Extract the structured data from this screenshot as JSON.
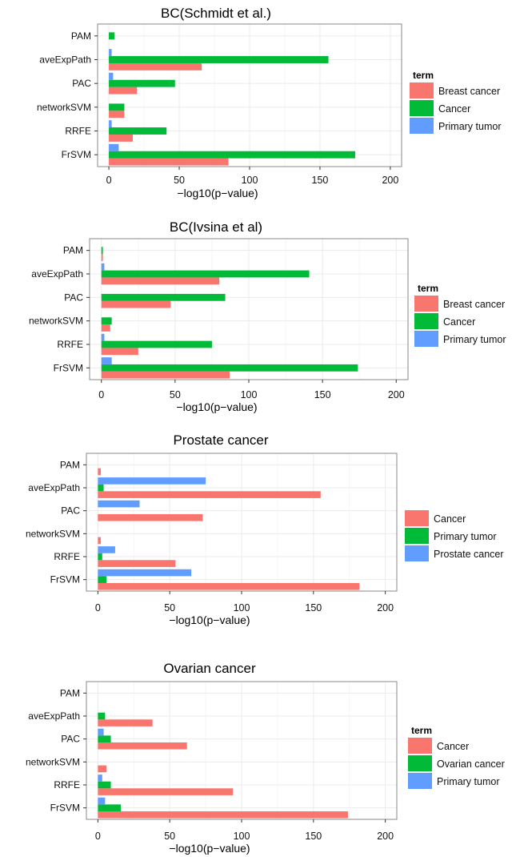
{
  "colors": {
    "red": "#F8766D",
    "green": "#00BA38",
    "blue": "#619CFF",
    "panel": "#ffffff",
    "grid": "#ebebeb",
    "border": "#8a8a8a"
  },
  "chart_data": [
    {
      "type": "bar",
      "orientation": "horizontal",
      "title": "BC(Schmidt et al.)",
      "xlabel": "−log10(p−value)",
      "ylabel": "",
      "categories": [
        "PAM",
        "aveExpPath",
        "PAC",
        "networkSVM",
        "RRFE",
        "FrSVM"
      ],
      "xlim": [
        -8,
        208
      ],
      "xticks": [
        0,
        50,
        100,
        150,
        200
      ],
      "grid": true,
      "legend_title": "term",
      "legend_position": "right",
      "series": [
        {
          "name": "Breast cancer",
          "color": "#F8766D",
          "values": [
            0,
            66,
            20,
            11,
            17,
            85
          ]
        },
        {
          "name": "Cancer",
          "color": "#00BA38",
          "values": [
            4,
            156,
            47,
            11,
            41,
            175
          ]
        },
        {
          "name": "Primary tumor",
          "color": "#619CFF",
          "values": [
            0,
            2,
            3,
            0,
            2,
            7
          ]
        }
      ]
    },
    {
      "type": "bar",
      "orientation": "horizontal",
      "title": "BC(Ivsina et al)",
      "xlabel": "−log10(p−value)",
      "ylabel": "",
      "categories": [
        "PAM",
        "aveExpPath",
        "PAC",
        "networkSVM",
        "RRFE",
        "FrSVM"
      ],
      "xlim": [
        -8,
        208
      ],
      "xticks": [
        0,
        50,
        100,
        150,
        200
      ],
      "grid": true,
      "legend_title": "term",
      "legend_position": "right",
      "series": [
        {
          "name": "Breast cancer",
          "color": "#F8766D",
          "values": [
            1,
            80,
            47,
            6,
            25,
            87
          ]
        },
        {
          "name": "Cancer",
          "color": "#00BA38",
          "values": [
            1,
            141,
            84,
            7,
            75,
            174
          ]
        },
        {
          "name": "Primary tumor",
          "color": "#619CFF",
          "values": [
            0,
            2,
            0,
            0,
            2,
            7
          ]
        }
      ]
    },
    {
      "type": "bar",
      "orientation": "horizontal",
      "title": "Prostate cancer",
      "xlabel": "−log10(p−value)",
      "ylabel": "",
      "categories": [
        "PAM",
        "aveExpPath",
        "PAC",
        "networkSVM",
        "RRFE",
        "FrSVM"
      ],
      "xlim": [
        -8,
        208
      ],
      "xticks": [
        0,
        50,
        100,
        150,
        200
      ],
      "grid": true,
      "legend_title": "",
      "legend_position": "right",
      "series": [
        {
          "name": "Cancer",
          "color": "#F8766D",
          "values": [
            2,
            155,
            73,
            2,
            54,
            182
          ]
        },
        {
          "name": "Primary tumor",
          "color": "#00BA38",
          "values": [
            0,
            4,
            0,
            0,
            3,
            6
          ]
        },
        {
          "name": "Prostate cancer",
          "color": "#619CFF",
          "values": [
            0,
            75,
            29,
            0,
            12,
            65
          ]
        }
      ]
    },
    {
      "type": "bar",
      "orientation": "horizontal",
      "title": "Ovarian cancer",
      "xlabel": "−log10(p−value)",
      "ylabel": "",
      "categories": [
        "PAM",
        "aveExpPath",
        "PAC",
        "networkSVM",
        "RRFE",
        "FrSVM"
      ],
      "xlim": [
        -8,
        208
      ],
      "xticks": [
        0,
        50,
        100,
        150,
        200
      ],
      "grid": true,
      "legend_title": "term",
      "legend_position": "right",
      "series": [
        {
          "name": "Cancer",
          "color": "#F8766D",
          "values": [
            0,
            38,
            62,
            6,
            94,
            174
          ]
        },
        {
          "name": "Ovarian cancer",
          "color": "#00BA38",
          "values": [
            0,
            5,
            9,
            0,
            9,
            16
          ]
        },
        {
          "name": "Primary tumor",
          "color": "#619CFF",
          "values": [
            0,
            0,
            4,
            0,
            3,
            5
          ]
        }
      ]
    }
  ]
}
